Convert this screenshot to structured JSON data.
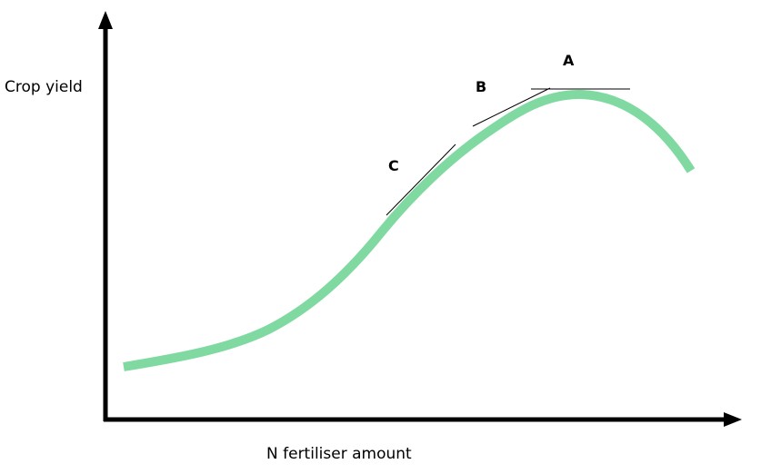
{
  "labels": {
    "y_axis": "Crop yield",
    "x_axis": "N fertiliser amount",
    "point_a": "A",
    "point_b": "B",
    "point_c": "C"
  },
  "colors": {
    "curve": "#7fd9a0",
    "axes": "#000000",
    "tangent": "#000000"
  }
}
